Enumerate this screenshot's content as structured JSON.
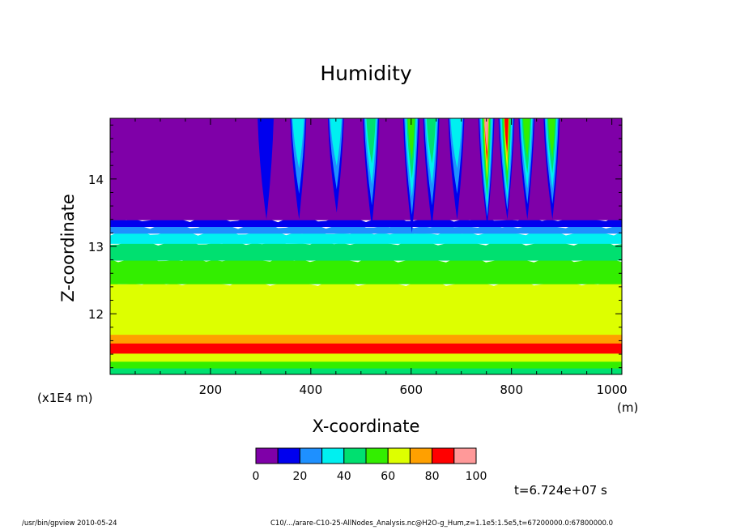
{
  "title": "Humidity",
  "chart_data": {
    "type": "heatmap",
    "title": "Humidity",
    "xlabel": "X-coordinate",
    "ylabel": "Z-coordinate",
    "x_unit": "(m)",
    "y_unit": "(x1E4 m)",
    "xlim": [
      0,
      1020
    ],
    "ylim": [
      11.1,
      14.9
    ],
    "x_ticks": [
      200,
      400,
      600,
      800,
      1000
    ],
    "y_ticks": [
      12,
      13,
      14
    ],
    "colorbar": {
      "levels": [
        0,
        10,
        20,
        30,
        40,
        50,
        60,
        70,
        80,
        90,
        100
      ],
      "tick_labels": [
        "0",
        "20",
        "40",
        "60",
        "80",
        "100"
      ],
      "colors": [
        "#7f00a8",
        "#0000ee",
        "#1e90ff",
        "#00f0f0",
        "#00e070",
        "#33ee00",
        "#ddff00",
        "#ffa000",
        "#ff0000",
        "#ff9999"
      ]
    },
    "layers": [
      {
        "z_min": 11.1,
        "z_max": 11.2,
        "value": 45
      },
      {
        "z_min": 11.2,
        "z_max": 11.3,
        "value": 55
      },
      {
        "z_min": 11.3,
        "z_max": 11.42,
        "value": 65
      },
      {
        "z_min": 11.42,
        "z_max": 11.57,
        "value": 85
      },
      {
        "z_min": 11.57,
        "z_max": 11.7,
        "value": 75
      },
      {
        "z_min": 11.7,
        "z_max": 12.45,
        "value": 65
      },
      {
        "z_min": 12.45,
        "z_max": 12.8,
        "value": 55
      },
      {
        "z_min": 12.8,
        "z_max": 13.05,
        "value": 45
      },
      {
        "z_min": 13.05,
        "z_max": 13.2,
        "value": 35
      },
      {
        "z_min": 13.2,
        "z_max": 13.3,
        "value": 25
      },
      {
        "z_min": 13.3,
        "z_max": 13.4,
        "value": 15
      },
      {
        "z_min": 13.4,
        "z_max": 14.9,
        "value": 5
      }
    ],
    "plumes": [
      {
        "x": 310,
        "z_bottom": 13.4,
        "value": 15
      },
      {
        "x": 375,
        "z_bottom": 13.4,
        "value": 35
      },
      {
        "x": 450,
        "z_bottom": 13.5,
        "value": 35
      },
      {
        "x": 520,
        "z_bottom": 13.3,
        "value": 45
      },
      {
        "x": 600,
        "z_bottom": 13.2,
        "value": 55
      },
      {
        "x": 640,
        "z_bottom": 13.3,
        "value": 45
      },
      {
        "x": 690,
        "z_bottom": 13.4,
        "value": 35
      },
      {
        "x": 750,
        "z_bottom": 13.3,
        "value": 95
      },
      {
        "x": 790,
        "z_bottom": 13.4,
        "value": 85
      },
      {
        "x": 830,
        "z_bottom": 13.4,
        "value": 55
      },
      {
        "x": 880,
        "z_bottom": 13.4,
        "value": 55
      }
    ]
  },
  "time_label": "t=6.724e+07 s",
  "footer_left": "/usr/bin/gpview   2010-05-24",
  "footer_right": "C10/.../arare-C10-25-AllNodes_Analysis.nc@H2O-g_Hum,z=1.1e5:1.5e5,t=67200000.0:67800000.0"
}
